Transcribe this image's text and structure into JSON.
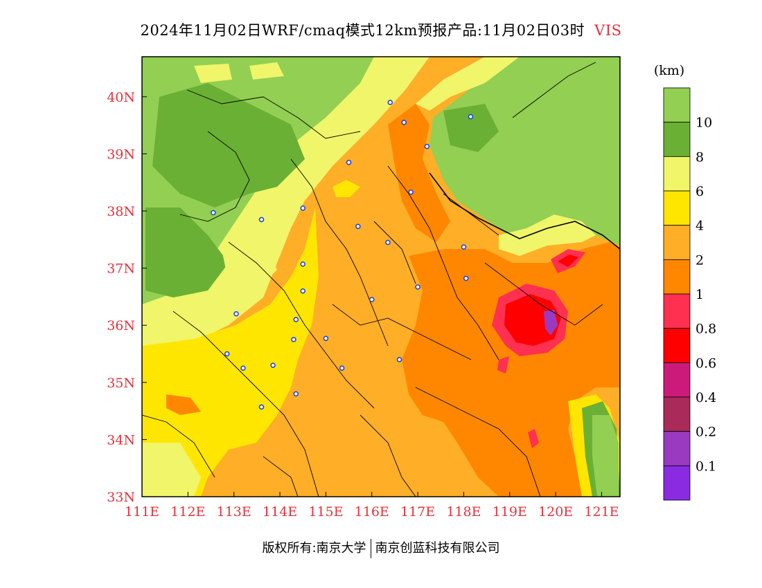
{
  "title": {
    "main": "2024年11月02日WRF/cmaq模式12km预报产品:11月02日03时",
    "variable": "VIS"
  },
  "axes": {
    "lon_labels": [
      "111E",
      "112E",
      "113E",
      "114E",
      "115E",
      "116E",
      "117E",
      "118E",
      "119E",
      "120E",
      "121E"
    ],
    "lat_labels": [
      "33N",
      "34N",
      "35N",
      "36N",
      "37N",
      "38N",
      "39N",
      "40N"
    ],
    "lon_range": [
      111,
      121.4
    ],
    "lat_range": [
      33,
      40.7
    ]
  },
  "colorbar": {
    "unit": "(km)",
    "levels": [
      "10",
      "8",
      "6",
      "4",
      "2",
      "1",
      "0.8",
      "0.6",
      "0.4",
      "0.2",
      "0.1"
    ],
    "colors": [
      "#92cf52",
      "#6ab035",
      "#f0f56a",
      "#ffe600",
      "#ffae27",
      "#ff8700",
      "#ff3050",
      "#ff0000",
      "#cc1a7a",
      "#aa2a5a",
      "#9a3ac0",
      "#8a2be2"
    ]
  },
  "stations": [
    {
      "lon": 116.4,
      "lat": 39.9
    },
    {
      "lon": 116.7,
      "lat": 39.55
    },
    {
      "lon": 117.2,
      "lat": 39.13
    },
    {
      "lon": 118.15,
      "lat": 39.65
    },
    {
      "lon": 115.5,
      "lat": 38.85
    },
    {
      "lon": 116.85,
      "lat": 38.33
    },
    {
      "lon": 114.5,
      "lat": 38.05
    },
    {
      "lon": 113.6,
      "lat": 37.85
    },
    {
      "lon": 112.55,
      "lat": 37.97
    },
    {
      "lon": 115.7,
      "lat": 37.73
    },
    {
      "lon": 116.35,
      "lat": 37.45
    },
    {
      "lon": 118.0,
      "lat": 37.37
    },
    {
      "lon": 114.5,
      "lat": 37.07
    },
    {
      "lon": 114.5,
      "lat": 36.6
    },
    {
      "lon": 116.0,
      "lat": 36.45
    },
    {
      "lon": 117.0,
      "lat": 36.67
    },
    {
      "lon": 118.05,
      "lat": 36.82
    },
    {
      "lon": 113.05,
      "lat": 36.2
    },
    {
      "lon": 114.35,
      "lat": 36.1
    },
    {
      "lon": 114.3,
      "lat": 35.75
    },
    {
      "lon": 115.0,
      "lat": 35.77
    },
    {
      "lon": 112.85,
      "lat": 35.5
    },
    {
      "lon": 113.85,
      "lat": 35.3
    },
    {
      "lon": 113.2,
      "lat": 35.25
    },
    {
      "lon": 115.35,
      "lat": 35.25
    },
    {
      "lon": 116.6,
      "lat": 35.4
    },
    {
      "lon": 114.35,
      "lat": 34.8
    },
    {
      "lon": 113.6,
      "lat": 34.57
    }
  ],
  "footer": {
    "left": "版权所有:南京大学",
    "right": "南京创蓝科技有限公司"
  }
}
